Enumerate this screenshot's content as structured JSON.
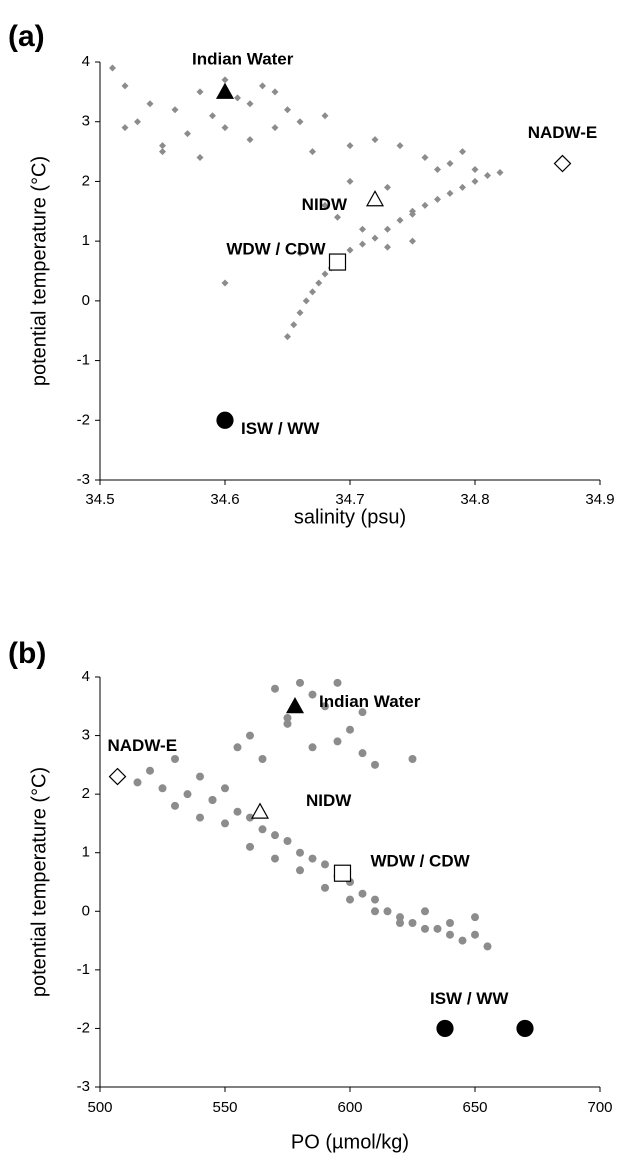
{
  "chart_data": [
    {
      "type": "scatter",
      "panel_label": "(a)",
      "xlabel": "salinity (psu)",
      "ylabel": "potential temperature (°C)",
      "xlim": [
        34.5,
        34.9
      ],
      "xticks": [
        34.5,
        34.6,
        34.7,
        34.8,
        34.9
      ],
      "ylim": [
        -3,
        4
      ],
      "yticks": [
        -3,
        -2,
        -1,
        0,
        1,
        2,
        3,
        4
      ],
      "series": [
        {
          "color": "#8c8c8c",
          "marker": "diamond",
          "x": [
            34.51,
            34.52,
            34.53,
            34.54,
            34.55,
            34.56,
            34.57,
            34.58,
            34.59,
            34.6,
            34.61,
            34.62,
            34.63,
            34.64,
            34.65,
            34.66,
            34.67,
            34.68,
            34.52,
            34.55,
            34.58,
            34.6,
            34.62,
            34.64,
            34.6,
            34.65,
            34.655,
            34.66,
            34.665,
            34.67,
            34.675,
            34.68,
            34.685,
            34.69,
            34.7,
            34.71,
            34.72,
            34.73,
            34.74,
            34.75,
            34.76,
            34.77,
            34.78,
            34.79,
            34.8,
            34.81,
            34.82,
            34.7,
            34.72,
            34.74,
            34.76,
            34.78,
            34.8,
            34.68,
            34.7,
            34.73,
            34.75,
            34.77,
            34.79,
            34.71,
            34.73,
            34.75,
            34.66,
            34.69
          ],
          "values": [
            3.9,
            2.9,
            3.0,
            3.3,
            2.6,
            3.2,
            2.8,
            3.5,
            3.1,
            3.7,
            3.4,
            2.7,
            3.6,
            2.9,
            3.2,
            3.0,
            2.5,
            3.1,
            3.6,
            2.5,
            2.4,
            2.9,
            3.3,
            3.5,
            0.3,
            -0.6,
            -0.4,
            -0.2,
            0.0,
            0.15,
            0.3,
            0.45,
            0.55,
            0.7,
            0.85,
            0.95,
            1.05,
            1.2,
            1.35,
            1.45,
            1.6,
            1.7,
            1.8,
            1.9,
            2.0,
            2.1,
            2.15,
            2.6,
            2.7,
            2.6,
            2.4,
            2.3,
            2.2,
            1.6,
            2.0,
            1.9,
            1.5,
            2.2,
            2.5,
            1.2,
            0.9,
            1.0,
            0.8,
            1.4
          ]
        }
      ],
      "annotations": [
        {
          "text": "Indian Water",
          "x": [
            34.6
          ],
          "y": [
            3.5
          ],
          "marker": "triangle",
          "filled": true
        },
        {
          "text": "NADW-E",
          "x": [
            34.87
          ],
          "y": [
            2.3
          ],
          "marker": "diamond",
          "filled": false
        },
        {
          "text": "NIDW",
          "x": [
            34.72
          ],
          "y": [
            1.7
          ],
          "marker": "triangle",
          "filled": false
        },
        {
          "text": "WDW / CDW",
          "x": [
            34.69
          ],
          "y": [
            0.65
          ],
          "marker": "square",
          "filled": false
        },
        {
          "text": "ISW / WW",
          "x": [
            34.6
          ],
          "y": [
            -2
          ],
          "marker": "circle",
          "filled": true
        }
      ]
    },
    {
      "type": "scatter",
      "panel_label": "(b)",
      "xlabel": "PO (µmol/kg)",
      "ylabel": "potential temperature (°C)",
      "xlim": [
        500,
        700
      ],
      "xticks": [
        500,
        550,
        600,
        650,
        700
      ],
      "ylim": [
        -3,
        4
      ],
      "yticks": [
        -3,
        -2,
        -1,
        0,
        1,
        2,
        3,
        4
      ],
      "series": [
        {
          "color": "#8c8c8c",
          "marker": "circle",
          "x": [
            515,
            520,
            525,
            530,
            535,
            540,
            545,
            550,
            555,
            560,
            565,
            570,
            575,
            580,
            585,
            590,
            595,
            600,
            605,
            610,
            615,
            620,
            625,
            630,
            635,
            640,
            645,
            650,
            655,
            530,
            540,
            550,
            560,
            570,
            580,
            590,
            600,
            610,
            620,
            630,
            640,
            650,
            560,
            565,
            570,
            575,
            580,
            585,
            590,
            595,
            600,
            605,
            610,
            585,
            595,
            605,
            625,
            555,
            575,
            545
          ],
          "values": [
            2.2,
            2.4,
            2.1,
            2.6,
            2.0,
            2.3,
            1.9,
            2.1,
            1.7,
            1.6,
            1.4,
            1.3,
            1.2,
            1.0,
            0.9,
            0.8,
            0.6,
            0.5,
            0.3,
            0.2,
            0.0,
            -0.1,
            -0.2,
            -0.3,
            -0.3,
            -0.4,
            -0.5,
            -0.4,
            -0.6,
            1.8,
            1.6,
            1.5,
            1.1,
            0.9,
            0.7,
            0.4,
            0.2,
            0.0,
            -0.2,
            0.0,
            -0.2,
            -0.1,
            3.0,
            2.6,
            3.8,
            3.2,
            3.9,
            2.8,
            3.5,
            3.9,
            3.1,
            3.4,
            2.5,
            3.7,
            2.9,
            2.7,
            2.6,
            2.8,
            3.3,
            1.9
          ]
        }
      ],
      "annotations": [
        {
          "text": "Indian Water",
          "x": [
            578
          ],
          "y": [
            3.5
          ],
          "marker": "triangle",
          "filled": true
        },
        {
          "text": "NADW-E",
          "x": [
            507
          ],
          "y": [
            2.3
          ],
          "marker": "diamond",
          "filled": false
        },
        {
          "text": "NIDW",
          "x": [
            564
          ],
          "y": [
            1.7
          ],
          "marker": "triangle",
          "filled": false
        },
        {
          "text": "WDW / CDW",
          "x": [
            597
          ],
          "y": [
            0.65
          ],
          "marker": "square",
          "filled": false
        },
        {
          "text": "ISW / WW",
          "x": [
            638,
            670
          ],
          "y": [
            -2,
            -2
          ],
          "marker": "circle",
          "filled": true
        }
      ]
    }
  ]
}
